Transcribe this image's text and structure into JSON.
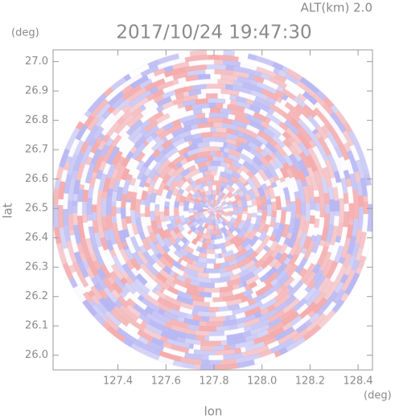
{
  "chart_data": {
    "type": "radar-ppi",
    "title": "2017/10/24 19:47:30",
    "subtitle": "ALT(km) 2.0",
    "x_label": "lon",
    "y_label": "lat",
    "x_unit": "(deg)",
    "y_unit": "(deg)",
    "xlim": [
      127.13,
      128.46
    ],
    "ylim": [
      25.95,
      27.04
    ],
    "xticks": [
      127.4,
      127.6,
      127.8,
      {
        "value": 128.0,
        "label": "128.0"
      },
      128.2,
      128.4
    ],
    "yticks": [
      {
        "value": 26.0,
        "label": "26.0"
      },
      26.1,
      26.2,
      26.3,
      26.4,
      26.5,
      26.6,
      26.7,
      26.8,
      26.9,
      {
        "value": 27.0,
        "label": "27.0"
      }
    ],
    "colors": [
      "#f4a6a6",
      "#b3b3f2",
      "#ffffff"
    ]
  }
}
